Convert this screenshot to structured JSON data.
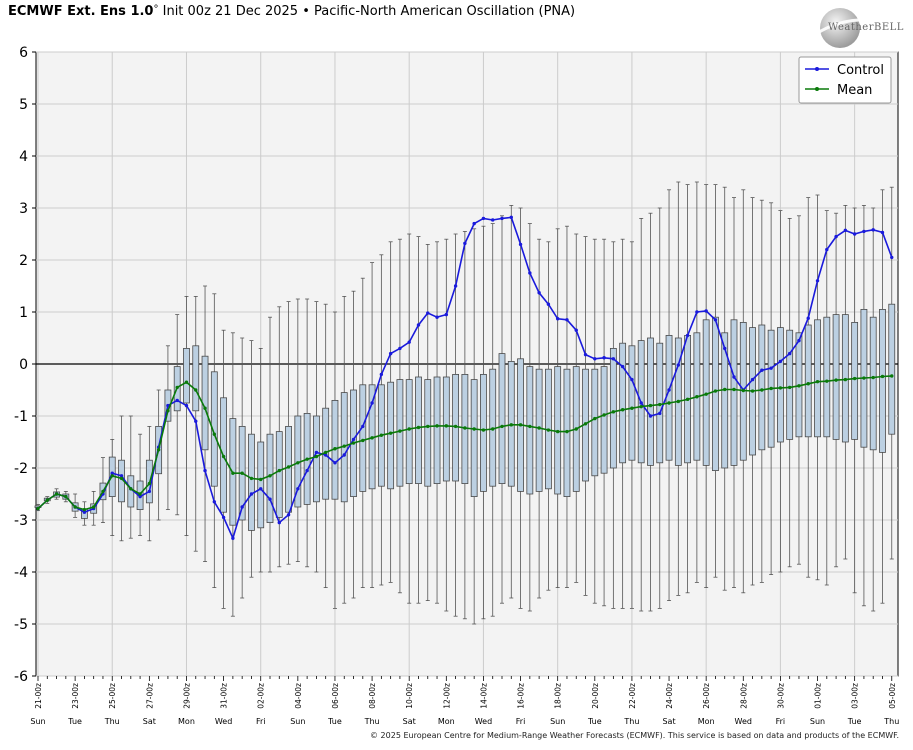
{
  "header": {
    "title_bold": "ECMWF Ext. Ens 1.0",
    "title_deg": "°",
    "title_rest": " Init 00z 21 Dec 2025 • Pacific-North American Oscillation (PNA)"
  },
  "logo": {
    "text": "WeatherBELL",
    "icon": "globe-swoosh-logo"
  },
  "footer": {
    "text": "© 2025 European Centre for Medium-Range Weather Forecasts (ECMWF). This service is based on data and products of the ECMWF."
  },
  "colors": {
    "control": "#1a1adc",
    "mean": "#0a7a0a",
    "box_fill": "#bcd0e2",
    "box_edge": "#4a4a4a",
    "grid": "#cccccc",
    "plot_bg": "#f3f3f3"
  },
  "chart_data": {
    "type": "box",
    "ylim": [
      -6,
      6
    ],
    "yticks": [
      -6,
      -5,
      -4,
      -3,
      -2,
      -1,
      0,
      1,
      2,
      3,
      4,
      5,
      6
    ],
    "grid": true,
    "legend_position": "top-right",
    "x_date_labels": [
      "21-00z",
      "23-00z",
      "25-00z",
      "27-00z",
      "29-00z",
      "31-00z",
      "02-00z",
      "04-00z",
      "06-00z",
      "08-00z",
      "10-00z",
      "12-00z",
      "14-00z",
      "16-00z",
      "18-00z",
      "20-00z",
      "22-00z",
      "24-00z",
      "26-00z",
      "28-00z",
      "30-00z",
      "01-00z",
      "03-00z",
      "05-00z"
    ],
    "x_day_labels": [
      "Sun",
      "Tue",
      "Thu",
      "Sat",
      "Mon",
      "Wed",
      "Fri",
      "Sun",
      "Tue",
      "Thu",
      "Sat",
      "Mon",
      "Wed",
      "Fri",
      "Sun",
      "Tue",
      "Thu",
      "Sat",
      "Mon",
      "Wed",
      "Fri",
      "Sun",
      "Tue",
      "Thu"
    ],
    "series": [
      {
        "name": "Control",
        "values": [
          -2.78,
          -2.62,
          -2.5,
          -2.55,
          -2.75,
          -2.85,
          -2.78,
          -2.5,
          -2.1,
          -2.15,
          -2.4,
          -2.55,
          -2.45,
          -1.6,
          -0.8,
          -0.7,
          -0.8,
          -1.1,
          -2.05,
          -2.65,
          -2.95,
          -3.35,
          -2.75,
          -2.5,
          -2.4,
          -2.6,
          -3.05,
          -2.9,
          -2.4,
          -2.05,
          -1.7,
          -1.75,
          -1.9,
          -1.75,
          -1.45,
          -1.2,
          -0.75,
          -0.2,
          0.2,
          0.3,
          0.42,
          0.75,
          0.98,
          0.9,
          0.95,
          1.5,
          2.32,
          2.7,
          2.8,
          2.77,
          2.8,
          2.82,
          2.3,
          1.75,
          1.37,
          1.15,
          0.87,
          0.85,
          0.65,
          0.18,
          0.1,
          0.12,
          0.1,
          -0.05,
          -0.3,
          -0.75,
          -1.0,
          -0.95,
          -0.5,
          -0.02,
          0.55,
          1.0,
          1.02,
          0.85,
          0.3,
          -0.25,
          -0.5,
          -0.3,
          -0.12,
          -0.08,
          0.05,
          0.2,
          0.45,
          0.88,
          1.6,
          2.2,
          2.45,
          2.57,
          2.5,
          2.55,
          2.58,
          2.53,
          2.05
        ]
      },
      {
        "name": "Mean",
        "values": [
          -2.78,
          -2.62,
          -2.5,
          -2.55,
          -2.75,
          -2.8,
          -2.75,
          -2.45,
          -2.15,
          -2.2,
          -2.4,
          -2.5,
          -2.3,
          -1.65,
          -0.9,
          -0.45,
          -0.35,
          -0.5,
          -0.85,
          -1.35,
          -1.78,
          -2.1,
          -2.1,
          -2.2,
          -2.22,
          -2.15,
          -2.05,
          -1.98,
          -1.9,
          -1.83,
          -1.78,
          -1.7,
          -1.63,
          -1.58,
          -1.52,
          -1.47,
          -1.42,
          -1.37,
          -1.33,
          -1.29,
          -1.25,
          -1.22,
          -1.2,
          -1.19,
          -1.19,
          -1.2,
          -1.23,
          -1.25,
          -1.27,
          -1.25,
          -1.2,
          -1.17,
          -1.17,
          -1.2,
          -1.23,
          -1.27,
          -1.3,
          -1.3,
          -1.25,
          -1.15,
          -1.05,
          -0.98,
          -0.92,
          -0.88,
          -0.85,
          -0.82,
          -0.8,
          -0.78,
          -0.75,
          -0.72,
          -0.68,
          -0.63,
          -0.58,
          -0.52,
          -0.49,
          -0.49,
          -0.51,
          -0.52,
          -0.5,
          -0.47,
          -0.46,
          -0.45,
          -0.42,
          -0.38,
          -0.34,
          -0.33,
          -0.31,
          -0.3,
          -0.28,
          -0.27,
          -0.26,
          -0.24,
          -0.23
        ]
      }
    ],
    "boxes": {
      "q1": [
        -2.76,
        -2.63,
        -2.56,
        -2.6,
        -2.83,
        -2.97,
        -2.87,
        -2.61,
        -2.55,
        -2.65,
        -2.75,
        -2.8,
        -2.67,
        -2.11,
        -1.1,
        -0.9,
        -0.75,
        -0.9,
        -1.65,
        -2.35,
        -2.85,
        -3.1,
        -3.0,
        -3.2,
        -3.15,
        -3.05,
        -2.95,
        -2.85,
        -2.75,
        -2.7,
        -2.65,
        -2.6,
        -2.6,
        -2.65,
        -2.55,
        -2.45,
        -2.4,
        -2.35,
        -2.4,
        -2.35,
        -2.3,
        -2.3,
        -2.35,
        -2.3,
        -2.25,
        -2.25,
        -2.3,
        -2.55,
        -2.45,
        -2.35,
        -2.3,
        -2.35,
        -2.45,
        -2.5,
        -2.45,
        -2.4,
        -2.5,
        -2.55,
        -2.45,
        -2.25,
        -2.15,
        -2.1,
        -2.0,
        -1.9,
        -1.85,
        -1.9,
        -1.95,
        -1.9,
        -1.85,
        -1.95,
        -1.9,
        -1.85,
        -1.95,
        -2.05,
        -2.0,
        -1.95,
        -1.85,
        -1.75,
        -1.65,
        -1.6,
        -1.5,
        -1.45,
        -1.4,
        -1.4,
        -1.4,
        -1.4,
        -1.45,
        -1.5,
        -1.45,
        -1.6,
        -1.65,
        -1.7,
        -1.35
      ],
      "q3": [
        -2.73,
        -2.58,
        -2.46,
        -2.5,
        -2.67,
        -2.79,
        -2.69,
        -2.29,
        -1.79,
        -1.85,
        -2.15,
        -2.25,
        -1.85,
        -1.2,
        -0.5,
        -0.05,
        0.3,
        0.35,
        0.15,
        -0.15,
        -0.65,
        -1.05,
        -1.2,
        -1.35,
        -1.5,
        -1.35,
        -1.3,
        -1.2,
        -1.0,
        -0.95,
        -1.0,
        -0.85,
        -0.7,
        -0.55,
        -0.5,
        -0.4,
        -0.4,
        -0.4,
        -0.35,
        -0.3,
        -0.3,
        -0.25,
        -0.3,
        -0.25,
        -0.25,
        -0.2,
        -0.2,
        -0.3,
        -0.2,
        -0.1,
        0.2,
        0.05,
        0.1,
        -0.05,
        -0.1,
        -0.1,
        -0.05,
        -0.1,
        -0.05,
        -0.1,
        -0.1,
        -0.05,
        0.3,
        0.4,
        0.35,
        0.45,
        0.5,
        0.4,
        0.55,
        0.5,
        0.55,
        0.6,
        0.85,
        0.9,
        0.6,
        0.85,
        0.8,
        0.7,
        0.75,
        0.65,
        0.7,
        0.65,
        0.6,
        0.75,
        0.85,
        0.9,
        0.95,
        0.95,
        0.8,
        1.05,
        0.9,
        1.05,
        1.15
      ],
      "min": [
        -2.82,
        -2.68,
        -2.6,
        -2.65,
        -2.95,
        -3.1,
        -3.1,
        -3.05,
        -3.3,
        -3.4,
        -3.35,
        -3.3,
        -3.4,
        -3.0,
        -2.8,
        -2.9,
        -3.3,
        -3.6,
        -3.8,
        -4.3,
        -4.7,
        -4.85,
        -4.5,
        -4.1,
        -4.0,
        -4.0,
        -3.9,
        -3.85,
        -3.8,
        -3.9,
        -4.0,
        -4.3,
        -4.7,
        -4.6,
        -4.5,
        -4.3,
        -4.3,
        -4.25,
        -4.2,
        -4.4,
        -4.6,
        -4.6,
        -4.55,
        -4.6,
        -4.75,
        -4.85,
        -4.9,
        -5.0,
        -4.9,
        -4.85,
        -4.6,
        -4.5,
        -4.7,
        -4.75,
        -4.5,
        -4.35,
        -4.3,
        -4.3,
        -4.2,
        -4.45,
        -4.6,
        -4.65,
        -4.7,
        -4.7,
        -4.7,
        -4.75,
        -4.75,
        -4.7,
        -4.55,
        -4.45,
        -4.4,
        -4.2,
        -4.3,
        -4.1,
        -4.35,
        -4.3,
        -4.4,
        -4.25,
        -4.2,
        -4.05,
        -4.0,
        -3.9,
        -3.85,
        -4.1,
        -4.15,
        -4.25,
        -3.9,
        -3.75,
        -4.4,
        -4.65,
        -4.75,
        -4.6,
        -3.75
      ],
      "max": [
        -2.7,
        -2.55,
        -2.4,
        -2.45,
        -2.5,
        -2.65,
        -2.45,
        -1.8,
        -1.45,
        -1.0,
        -1.0,
        -1.35,
        -1.2,
        -0.5,
        0.35,
        0.95,
        1.3,
        1.3,
        1.5,
        1.35,
        0.65,
        0.6,
        0.5,
        0.45,
        0.3,
        0.9,
        1.1,
        1.2,
        1.25,
        1.25,
        1.2,
        1.15,
        1.0,
        1.3,
        1.4,
        1.65,
        1.95,
        2.1,
        2.35,
        2.4,
        2.5,
        2.45,
        2.3,
        2.35,
        2.4,
        2.5,
        2.55,
        2.6,
        2.65,
        2.7,
        2.85,
        3.05,
        3.0,
        2.7,
        2.4,
        2.35,
        2.6,
        2.65,
        2.5,
        2.45,
        2.4,
        2.4,
        2.35,
        2.4,
        2.35,
        2.8,
        2.9,
        3.0,
        3.35,
        3.5,
        3.45,
        3.5,
        3.45,
        3.45,
        3.4,
        3.2,
        3.35,
        3.2,
        3.15,
        3.1,
        2.95,
        2.8,
        2.85,
        3.2,
        3.25,
        2.95,
        2.9,
        3.05,
        3.0,
        3.05,
        3.0,
        3.35,
        3.4
      ]
    }
  }
}
